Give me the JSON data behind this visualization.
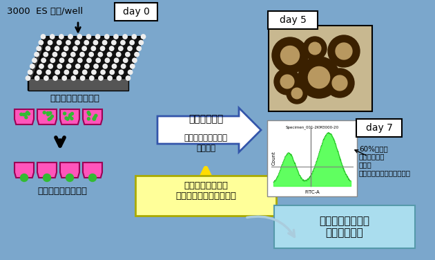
{
  "bg_color": "#7BA7CC",
  "day0_label": "3000  ES 細胞/well",
  "day0_box": "day 0",
  "day5_box": "day 5",
  "day7_box": "day 7",
  "label_plate": "低細胞接着プレート",
  "label_arrow_right1": "立体浮遊培養",
  "label_arrow_right2": "無血清・低増殖因子\nの培養液",
  "label_ecm": "細胞外マトリクス\n（ラミニンなど）の添加",
  "label_reaggregate": "迅速な再凝集塗形成",
  "label_60pct": "60%以上が\n網膜前駆細胞\nに分化\n（蛍光細胞ソーター解析）",
  "label_final": "網膜前駆組織への\n高効率な分化",
  "white_arrow_color": "#FFFFFF",
  "blue_outline_color": "#3355AA",
  "yellow_arrow_color": "#FFDD00",
  "final_box_color": "#AADDEE",
  "ecm_box_color": "#FFFF99",
  "text_color": "#000000"
}
